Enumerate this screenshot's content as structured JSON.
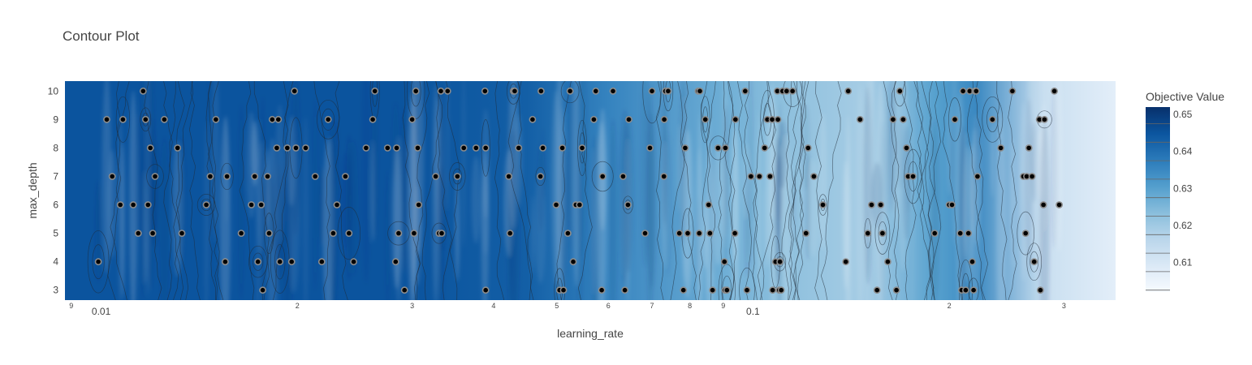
{
  "chart_data": {
    "type": "contour",
    "title": "Contour Plot",
    "xlabel": "learning_rate",
    "ylabel": "max_depth",
    "x_scale": "log",
    "xlim": [
      0.0088,
      0.36
    ],
    "ylim": [
      2.65,
      10.35
    ],
    "x_major_ticks": [
      {
        "value": 0.01,
        "label": "0.01"
      },
      {
        "value": 0.1,
        "label": "0.1"
      }
    ],
    "x_minor_ticks": [
      {
        "value": 0.009,
        "label": "9"
      },
      {
        "value": 0.02,
        "label": "2"
      },
      {
        "value": 0.03,
        "label": "3"
      },
      {
        "value": 0.04,
        "label": "4"
      },
      {
        "value": 0.05,
        "label": "5"
      },
      {
        "value": 0.06,
        "label": "6"
      },
      {
        "value": 0.07,
        "label": "7"
      },
      {
        "value": 0.08,
        "label": "8"
      },
      {
        "value": 0.09,
        "label": "9"
      },
      {
        "value": 0.2,
        "label": "2"
      },
      {
        "value": 0.3,
        "label": "3"
      }
    ],
    "y_ticks": [
      "3",
      "4",
      "5",
      "6",
      "7",
      "8",
      "9",
      "10"
    ],
    "colorbar": {
      "title": "Objective Value",
      "range": [
        0.602,
        0.652
      ],
      "ticks": [
        "0.61",
        "0.62",
        "0.63",
        "0.64",
        "0.65"
      ],
      "tick_values": [
        0.61,
        0.62,
        0.63,
        0.64,
        0.65
      ],
      "colorscale": [
        "#f7fbff",
        "#dbe9f6",
        "#bad6eb",
        "#89bedc",
        "#539ecd",
        "#2b7bba",
        "#0b559f",
        "#08306b"
      ]
    },
    "objective_trend": {
      "x": [
        0.0088,
        0.03,
        0.045,
        0.06,
        0.09,
        0.11,
        0.15,
        0.19,
        0.22,
        0.28,
        0.36
      ],
      "z": [
        0.645,
        0.645,
        0.643,
        0.636,
        0.627,
        0.623,
        0.619,
        0.63,
        0.635,
        0.613,
        0.607
      ]
    },
    "trials": [
      [
        0.0099,
        4
      ],
      [
        0.0102,
        9
      ],
      [
        0.0104,
        7
      ],
      [
        0.0107,
        6
      ],
      [
        0.0108,
        9
      ],
      [
        0.0112,
        6
      ],
      [
        0.0114,
        5
      ],
      [
        0.0116,
        10
      ],
      [
        0.0117,
        9
      ],
      [
        0.0118,
        6
      ],
      [
        0.0119,
        8
      ],
      [
        0.012,
        5
      ],
      [
        0.0121,
        7
      ],
      [
        0.0125,
        9
      ],
      [
        0.0131,
        8
      ],
      [
        0.0133,
        5
      ],
      [
        0.0145,
        6
      ],
      [
        0.0147,
        7
      ],
      [
        0.015,
        9
      ],
      [
        0.0155,
        4
      ],
      [
        0.0156,
        7
      ],
      [
        0.0164,
        5
      ],
      [
        0.017,
        6
      ],
      [
        0.0172,
        7
      ],
      [
        0.0174,
        4
      ],
      [
        0.0176,
        6
      ],
      [
        0.0177,
        3
      ],
      [
        0.018,
        7
      ],
      [
        0.0181,
        5
      ],
      [
        0.0183,
        9
      ],
      [
        0.0186,
        8
      ],
      [
        0.0187,
        9
      ],
      [
        0.0188,
        4
      ],
      [
        0.0193,
        8
      ],
      [
        0.0196,
        4
      ],
      [
        0.0198,
        10
      ],
      [
        0.0199,
        8
      ],
      [
        0.0206,
        8
      ],
      [
        0.0213,
        7
      ],
      [
        0.0218,
        4
      ],
      [
        0.0223,
        9
      ],
      [
        0.0227,
        5
      ],
      [
        0.023,
        6
      ],
      [
        0.0237,
        7
      ],
      [
        0.024,
        5
      ],
      [
        0.0244,
        4
      ],
      [
        0.0255,
        8
      ],
      [
        0.0261,
        9
      ],
      [
        0.0263,
        10
      ],
      [
        0.0275,
        8
      ],
      [
        0.0283,
        4
      ],
      [
        0.0284,
        8
      ],
      [
        0.0286,
        5
      ],
      [
        0.0292,
        3
      ],
      [
        0.03,
        9
      ],
      [
        0.0302,
        5
      ],
      [
        0.0304,
        10
      ],
      [
        0.0306,
        8
      ],
      [
        0.0307,
        6
      ],
      [
        0.0326,
        7
      ],
      [
        0.033,
        5
      ],
      [
        0.0332,
        10
      ],
      [
        0.0333,
        5
      ],
      [
        0.034,
        10
      ],
      [
        0.0352,
        7
      ],
      [
        0.036,
        8
      ],
      [
        0.0376,
        8
      ],
      [
        0.0388,
        10
      ],
      [
        0.0389,
        8
      ],
      [
        0.0389,
        3
      ],
      [
        0.0422,
        7
      ],
      [
        0.0424,
        5
      ],
      [
        0.0429,
        10
      ],
      [
        0.0431,
        10
      ],
      [
        0.0437,
        8
      ],
      [
        0.0459,
        9
      ],
      [
        0.0472,
        7
      ],
      [
        0.0473,
        10
      ],
      [
        0.0476,
        8
      ],
      [
        0.0499,
        6
      ],
      [
        0.0505,
        3
      ],
      [
        0.051,
        8
      ],
      [
        0.0512,
        3
      ],
      [
        0.052,
        5
      ],
      [
        0.0524,
        10
      ],
      [
        0.053,
        4
      ],
      [
        0.0535,
        6
      ],
      [
        0.0542,
        6
      ],
      [
        0.0547,
        8
      ],
      [
        0.057,
        9
      ],
      [
        0.0574,
        10
      ],
      [
        0.0586,
        3
      ],
      [
        0.0588,
        7
      ],
      [
        0.061,
        10
      ],
      [
        0.0632,
        7
      ],
      [
        0.0636,
        3
      ],
      [
        0.0643,
        6
      ],
      [
        0.0645,
        9
      ],
      [
        0.0683,
        5
      ],
      [
        0.0695,
        8
      ],
      [
        0.07,
        10
      ],
      [
        0.073,
        7
      ],
      [
        0.0731,
        9
      ],
      [
        0.0734,
        10
      ],
      [
        0.0741,
        10
      ],
      [
        0.0771,
        5
      ],
      [
        0.0782,
        3
      ],
      [
        0.0787,
        8
      ],
      [
        0.0794,
        5
      ],
      [
        0.0824,
        10
      ],
      [
        0.0827,
        5
      ],
      [
        0.0829,
        10
      ],
      [
        0.0845,
        9
      ],
      [
        0.0855,
        6
      ],
      [
        0.0859,
        5
      ],
      [
        0.0867,
        3
      ],
      [
        0.0884,
        8
      ],
      [
        0.0904,
        4
      ],
      [
        0.0906,
        3
      ],
      [
        0.0907,
        8
      ],
      [
        0.0912,
        3
      ],
      [
        0.0938,
        5
      ],
      [
        0.094,
        9
      ],
      [
        0.0973,
        10
      ],
      [
        0.0979,
        3
      ],
      [
        0.0993,
        7
      ],
      [
        0.1023,
        7
      ],
      [
        0.1042,
        8
      ],
      [
        0.1052,
        9
      ],
      [
        0.1062,
        7
      ],
      [
        0.107,
        9
      ],
      [
        0.1072,
        3
      ],
      [
        0.1083,
        4
      ],
      [
        0.109,
        10
      ],
      [
        0.1092,
        9
      ],
      [
        0.1097,
        3
      ],
      [
        0.11,
        4
      ],
      [
        0.1105,
        3
      ],
      [
        0.111,
        10
      ],
      [
        0.1126,
        10
      ],
      [
        0.115,
        10
      ],
      [
        0.1206,
        5
      ],
      [
        0.1215,
        8
      ],
      [
        0.124,
        7
      ],
      [
        0.128,
        6
      ],
      [
        0.1388,
        4
      ],
      [
        0.14,
        10
      ],
      [
        0.146,
        9
      ],
      [
        0.15,
        5
      ],
      [
        0.152,
        6
      ],
      [
        0.155,
        3
      ],
      [
        0.157,
        6
      ],
      [
        0.158,
        5
      ],
      [
        0.161,
        4
      ],
      [
        0.164,
        9
      ],
      [
        0.166,
        3
      ],
      [
        0.168,
        10
      ],
      [
        0.17,
        9
      ],
      [
        0.172,
        8
      ],
      [
        0.173,
        7
      ],
      [
        0.176,
        7
      ],
      [
        0.19,
        5
      ],
      [
        0.2,
        6
      ],
      [
        0.202,
        6
      ],
      [
        0.204,
        9
      ],
      [
        0.208,
        5
      ],
      [
        0.209,
        3
      ],
      [
        0.21,
        10
      ],
      [
        0.212,
        3
      ],
      [
        0.214,
        5
      ],
      [
        0.215,
        10
      ],
      [
        0.217,
        4
      ],
      [
        0.218,
        3
      ],
      [
        0.219,
        10
      ],
      [
        0.22,
        10
      ],
      [
        0.221,
        7
      ],
      [
        0.233,
        9
      ],
      [
        0.24,
        8
      ],
      [
        0.25,
        10
      ],
      [
        0.26,
        7
      ],
      [
        0.262,
        5
      ],
      [
        0.263,
        7
      ],
      [
        0.265,
        8
      ],
      [
        0.268,
        7
      ],
      [
        0.27,
        4
      ],
      [
        0.275,
        9
      ],
      [
        0.276,
        3
      ],
      [
        0.279,
        6
      ],
      [
        0.28,
        9
      ],
      [
        0.29,
        10
      ],
      [
        0.295,
        6
      ]
    ]
  }
}
